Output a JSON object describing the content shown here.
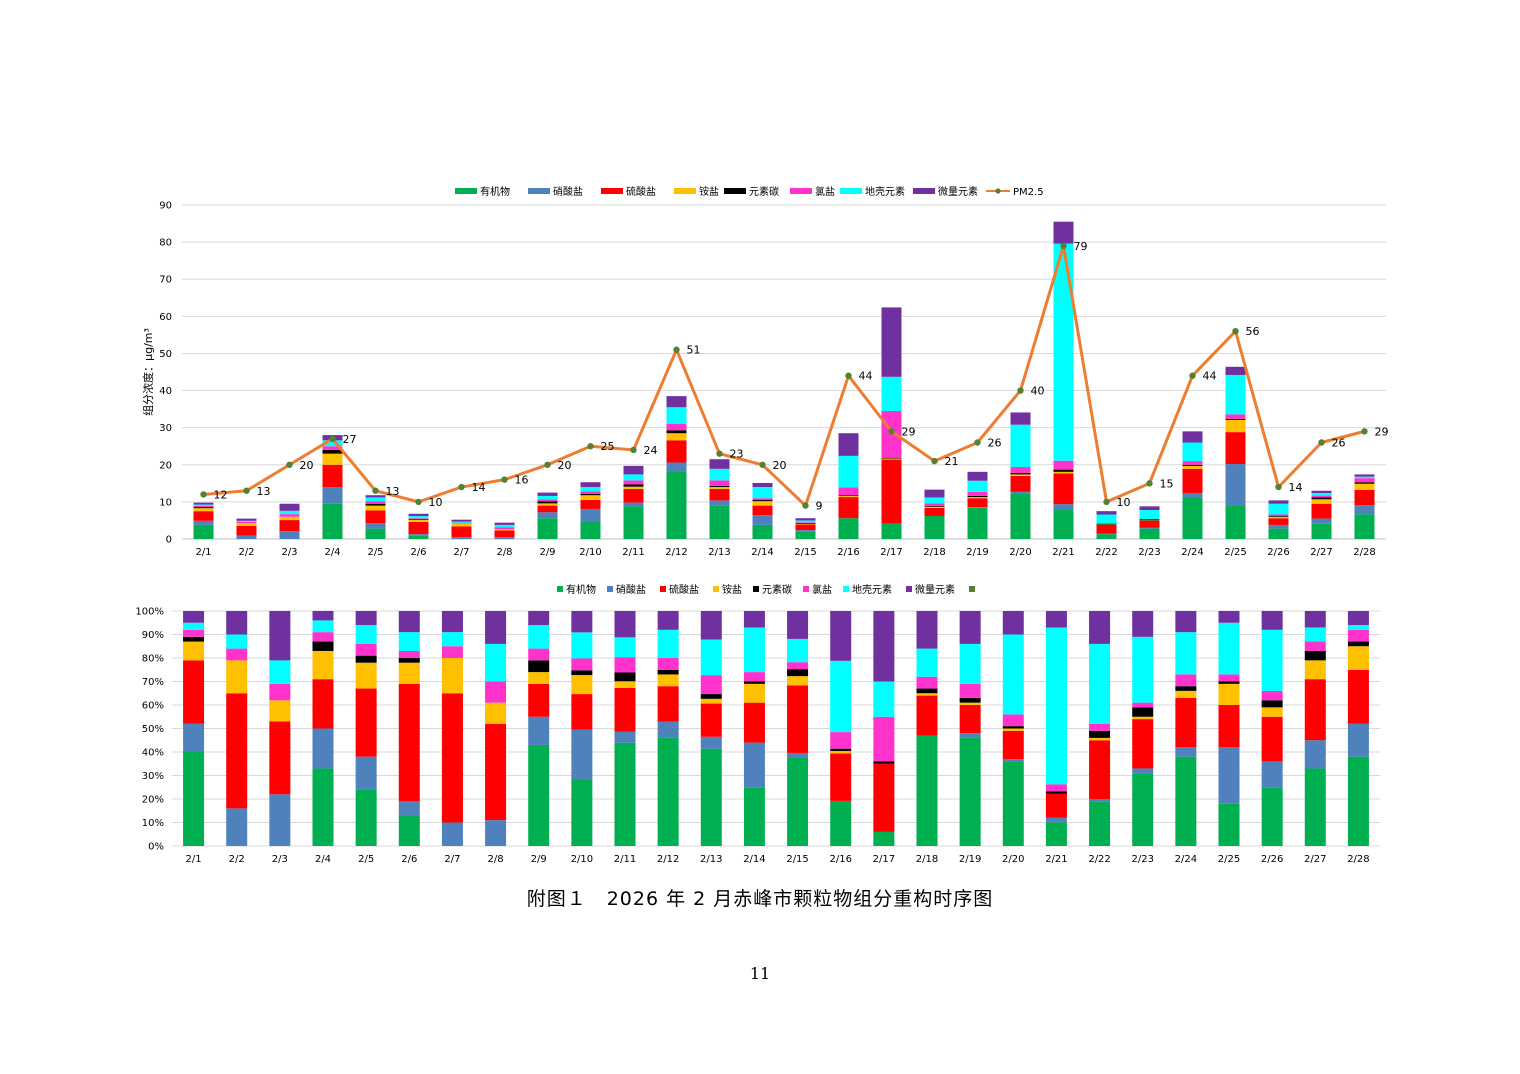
{
  "caption": "附图１　2026 年 2 月赤峰市颗粒物组分重构时序图",
  "page_number": "11",
  "chart_data": [
    {
      "type": "bar",
      "stacked": true,
      "overlay_line": "PM2.5",
      "ylabel": "组分浓度：μg/m³",
      "ylim": [
        0,
        90
      ],
      "yticks": [
        0,
        10,
        20,
        30,
        40,
        50,
        60,
        70,
        80,
        90
      ],
      "grid": true,
      "legend_position": "top-center",
      "categories": [
        "2/1",
        "2/2",
        "2/3",
        "2/4",
        "2/5",
        "2/6",
        "2/7",
        "2/8",
        "2/9",
        "2/10",
        "2/11",
        "2/12",
        "2/13",
        "2/14",
        "2/15",
        "2/16",
        "2/17",
        "2/18",
        "2/19",
        "2/20",
        "2/21",
        "2/22",
        "2/23",
        "2/24",
        "2/25",
        "2/26",
        "2/27",
        "2/28"
      ],
      "series": [
        {
          "name": "有机物",
          "color": "#00b050",
          "values": [
            3.8,
            0,
            0,
            9.5,
            2.8,
            0.9,
            0,
            0,
            5.6,
            4.7,
            8.8,
            18.3,
            9.0,
            3.8,
            2.1,
            5.6,
            4.2,
            6.2,
            8.4,
            12.3,
            7.8,
            1.3,
            2.8,
            11.2,
            8.9,
            2.8,
            4.1,
            6.7
          ]
        },
        {
          "name": "硝酸盐",
          "color": "#4f81bd",
          "values": [
            1.1,
            0.9,
            2.1,
            4.5,
            1.5,
            0.4,
            0.5,
            0.5,
            1.6,
            3.4,
            1.0,
            2.3,
            1.4,
            2.6,
            0.3,
            0,
            0,
            0,
            0.2,
            0.5,
            1.6,
            0.1,
            0.2,
            1.2,
            11.3,
            1.0,
            1.4,
            2.4
          ]
        },
        {
          "name": "硫酸盐",
          "color": "#ff0000",
          "values": [
            2.6,
            2.6,
            3.0,
            6.0,
            3.4,
            3.3,
            2.9,
            1.8,
            1.8,
            2.4,
            3.7,
            6.0,
            3.1,
            2.6,
            1.5,
            5.7,
            17.2,
            2.2,
            2.4,
            4.2,
            8.3,
            2.4,
            1.9,
            6.5,
            8.6,
            1.8,
            4.0,
            4.1
          ]
        },
        {
          "name": "铵盐",
          "color": "#ffc000",
          "values": [
            0.8,
            0.8,
            0.9,
            3.0,
            1.3,
            0.6,
            0.8,
            0.4,
            0.6,
            1.3,
            0.6,
            1.9,
            0.5,
            1.2,
            0.2,
            0.3,
            0.3,
            0.3,
            0.3,
            0.4,
            0.4,
            0.1,
            0.1,
            0.8,
            3.3,
            0.4,
            1.2,
            1.7
          ]
        },
        {
          "name": "元素碳",
          "color": "#000000",
          "values": [
            0.3,
            0,
            0,
            1.0,
            0.5,
            0.2,
            0,
            0,
            0.5,
            0.4,
            0.6,
            0.8,
            0.3,
            0.3,
            0.2,
            0.2,
            0.2,
            0.2,
            0.3,
            0.4,
            0.6,
            0.2,
            0.3,
            0.3,
            0.3,
            0.2,
            0.5,
            0.4
          ]
        },
        {
          "name": "氯盐",
          "color": "#ff33cc",
          "values": [
            0.3,
            0.3,
            0.7,
            1.0,
            0.7,
            0.2,
            0.2,
            0.4,
            0.6,
            0.6,
            1.1,
            1.7,
            1.5,
            0.5,
            0.2,
            2.1,
            12.6,
            0.7,
            1.1,
            1.6,
            2.4,
            0.2,
            0.1,
            1.0,
            1.2,
            0.4,
            0.5,
            1.1
          ]
        },
        {
          "name": "地壳元素",
          "color": "#00ffff",
          "values": [
            0.4,
            0.3,
            0.9,
            1.6,
            1.0,
            0.6,
            0.3,
            0.7,
            0.9,
            1.2,
            1.6,
            4.5,
            3.1,
            3.0,
            0.5,
            8.5,
            9.2,
            1.6,
            3.0,
            11.4,
            58.5,
            2.3,
            2.4,
            5.0,
            10.6,
            2.9,
            0.7,
            0.4
          ]
        },
        {
          "name": "微量元素",
          "color": "#7030a0",
          "values": [
            0.5,
            0.6,
            1.9,
            1.4,
            0.6,
            0.6,
            0.5,
            0.6,
            0.9,
            1.3,
            2.3,
            3.0,
            2.6,
            1.1,
            0.6,
            6.1,
            18.7,
            2.1,
            2.4,
            3.3,
            5.9,
            0.9,
            1.0,
            3.0,
            2.2,
            0.9,
            0.6,
            0.6
          ]
        }
      ],
      "line": {
        "name": "PM2.5",
        "color": "#ed7d31",
        "marker_color": "#548235",
        "values": [
          12,
          13,
          20,
          27,
          13,
          10,
          14,
          16,
          20,
          25,
          24,
          51,
          23,
          20,
          9,
          44,
          29,
          21,
          26,
          40,
          79,
          10,
          15,
          44,
          56,
          14,
          26,
          29
        ]
      }
    },
    {
      "type": "bar",
      "stacked": true,
      "normalized": true,
      "ylim": [
        0,
        100
      ],
      "yticks": [
        "0%",
        "10%",
        "20%",
        "30%",
        "40%",
        "50%",
        "60%",
        "70%",
        "80%",
        "90%",
        "100%"
      ],
      "grid": true,
      "legend_position": "top-center",
      "legend_extra_swatch_color": "#548235",
      "categories": [
        "2/1",
        "2/2",
        "2/3",
        "2/4",
        "2/5",
        "2/6",
        "2/7",
        "2/8",
        "2/9",
        "2/10",
        "2/11",
        "2/12",
        "2/13",
        "2/14",
        "2/15",
        "2/16",
        "2/17",
        "2/18",
        "2/19",
        "2/20",
        "2/21",
        "2/22",
        "2/23",
        "2/24",
        "2/25",
        "2/26",
        "2/27",
        "2/28"
      ],
      "series": [
        {
          "name": "有机物",
          "color": "#00b050",
          "values": [
            40,
            0,
            0,
            33,
            24,
            13,
            0,
            0,
            43,
            28,
            47,
            46,
            41,
            25,
            38,
            19,
            6,
            47,
            46,
            36,
            10,
            19,
            31,
            38,
            18,
            25,
            33,
            38
          ]
        },
        {
          "name": "硝酸盐",
          "color": "#4f81bd",
          "values": [
            12,
            16,
            22,
            17,
            14,
            6,
            10,
            11,
            12,
            21,
            5,
            7,
            5,
            19,
            2,
            0,
            0,
            0,
            2,
            1,
            2,
            1,
            2,
            4,
            24,
            11,
            12,
            14
          ]
        },
        {
          "name": "硫酸盐",
          "color": "#ff0000",
          "values": [
            27,
            49,
            31,
            21,
            29,
            50,
            55,
            41,
            14,
            15,
            20,
            15,
            14,
            17,
            29,
            20,
            29,
            17,
            12,
            12,
            10,
            25,
            21,
            21,
            18,
            19,
            26,
            23
          ]
        },
        {
          "name": "铵盐",
          "color": "#ffc000",
          "values": [
            8,
            14,
            9,
            12,
            11,
            9,
            15,
            9,
            5,
            8,
            3,
            5,
            2,
            8,
            4,
            1,
            0,
            1,
            1,
            1,
            0,
            1,
            1,
            3,
            9,
            4,
            8,
            10
          ]
        },
        {
          "name": "元素碳",
          "color": "#000000",
          "values": [
            2,
            0,
            0,
            4,
            3,
            2,
            0,
            0,
            5,
            2,
            4,
            2,
            2,
            1,
            3,
            1,
            1,
            2,
            2,
            1,
            1,
            3,
            4,
            2,
            1,
            3,
            4,
            2
          ]
        },
        {
          "name": "氯盐",
          "color": "#ff33cc",
          "values": [
            3,
            5,
            7,
            4,
            5,
            3,
            5,
            9,
            5,
            5,
            7,
            5,
            8,
            4,
            3,
            7,
            19,
            5,
            6,
            5,
            3,
            3,
            2,
            5,
            3,
            4,
            4,
            5
          ]
        },
        {
          "name": "地壳元素",
          "color": "#00ffff",
          "values": [
            3,
            6,
            10,
            5,
            8,
            8,
            6,
            16,
            10,
            11,
            9,
            12,
            15,
            19,
            10,
            30,
            15,
            12,
            17,
            34,
            66,
            34,
            28,
            18,
            22,
            26,
            6,
            2
          ]
        },
        {
          "name": "微量元素",
          "color": "#7030a0",
          "values": [
            5,
            10,
            21,
            4,
            6,
            9,
            9,
            14,
            6,
            9,
            12,
            8,
            12,
            7,
            12,
            21,
            30,
            16,
            14,
            10,
            7,
            14,
            11,
            9,
            5,
            8,
            7,
            6
          ]
        }
      ]
    }
  ]
}
